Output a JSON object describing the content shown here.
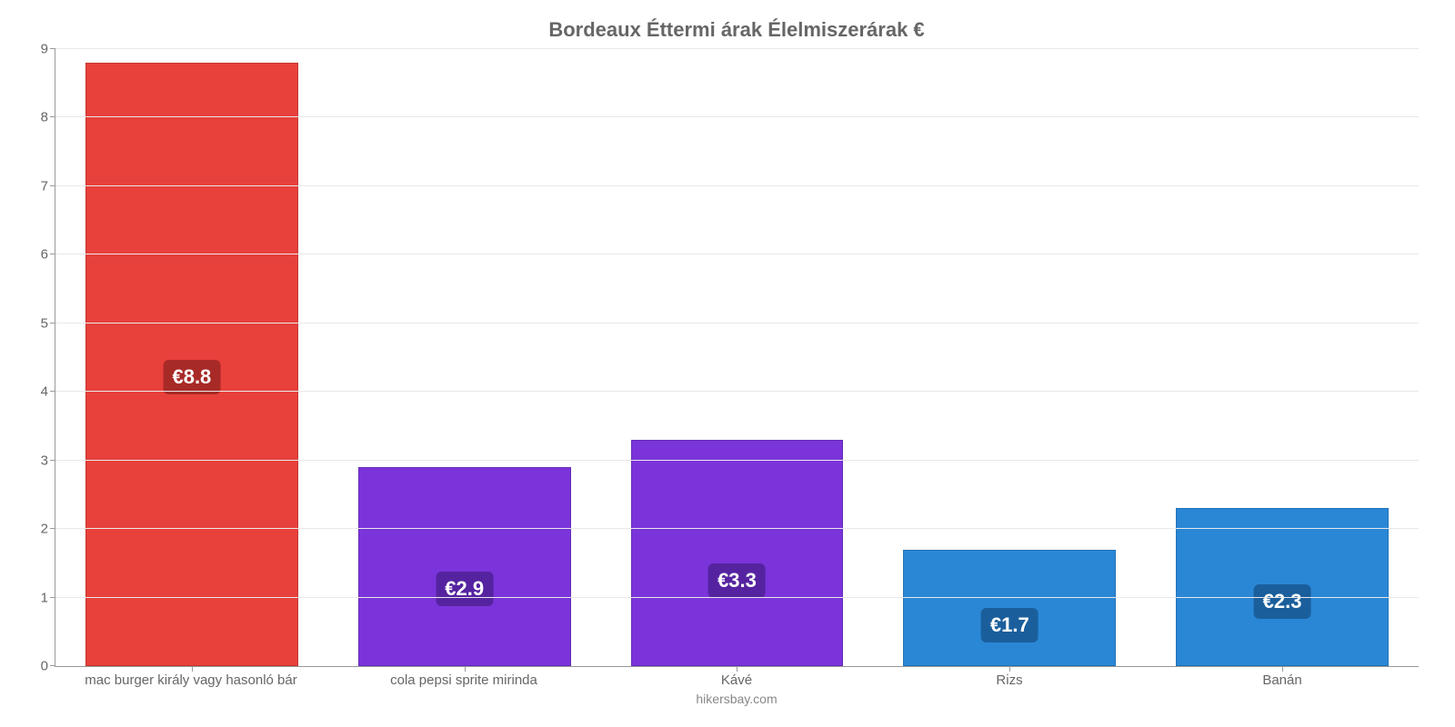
{
  "chart": {
    "type": "bar",
    "title": "Bordeaux Éttermi árak Élelmiszerárak €",
    "title_fontsize": 22,
    "title_color": "#666666",
    "source": "hikersbay.com",
    "background_color": "#ffffff",
    "grid_color": "#e8e8e8",
    "axis_color": "#999999",
    "tick_label_color": "#666666",
    "tick_label_fontsize": 15,
    "ylim": [
      0,
      9
    ],
    "ytick_step": 1,
    "yticks": [
      0,
      1,
      2,
      3,
      4,
      5,
      6,
      7,
      8,
      9
    ],
    "bar_width_percent": 78,
    "value_label_fontsize": 22,
    "value_label_text_color": "#ffffff",
    "value_label_radius": 6,
    "categories": [
      "mac burger király vagy hasonló bár",
      "cola pepsi sprite mirinda",
      "Kávé",
      "Rizs",
      "Banán"
    ],
    "values": [
      8.8,
      2.9,
      3.3,
      1.7,
      2.3
    ],
    "value_labels": [
      "€8.8",
      "€2.9",
      "€3.3",
      "€1.7",
      "€2.3"
    ],
    "bar_colors": [
      "#e8403b",
      "#7a34d9",
      "#7a34d9",
      "#2a87d6",
      "#2a87d6"
    ],
    "value_label_bg_colors": [
      "#a82a27",
      "#5523a0",
      "#5523a0",
      "#1a5f9c",
      "#1a5f9c"
    ],
    "value_label_position_ratio": [
      0.45,
      0.3,
      0.3,
      0.2,
      0.3
    ]
  }
}
